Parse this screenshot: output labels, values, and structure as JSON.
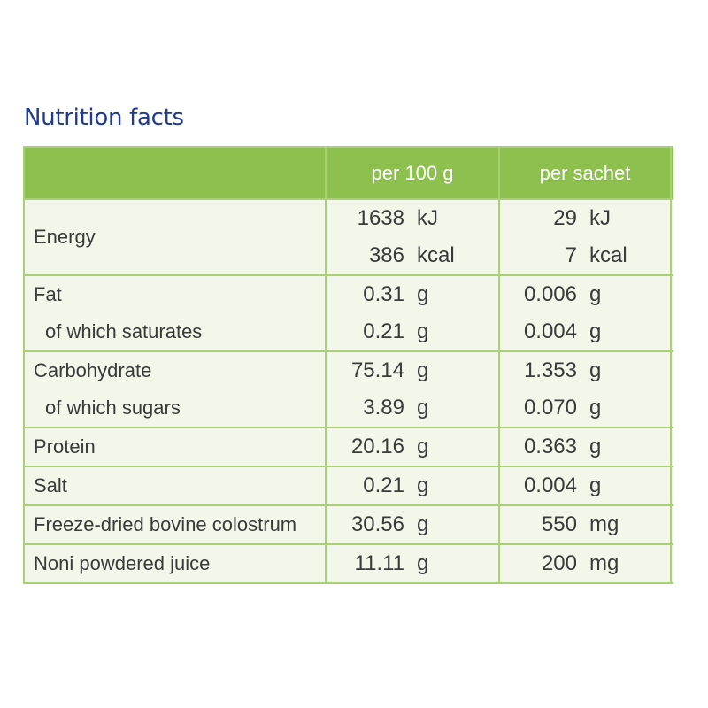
{
  "title": "Nutrition facts",
  "header": {
    "col1": "",
    "col2": "per 100 g",
    "col3": "per sachet"
  },
  "rows": [
    {
      "label": "Energy",
      "sub": [],
      "per100": [
        {
          "num": "1638",
          "unit": "kJ"
        },
        {
          "num": "386",
          "unit": "kcal"
        }
      ],
      "sachet": [
        {
          "num": "29",
          "unit": "kJ"
        },
        {
          "num": "7",
          "unit": "kcal"
        }
      ]
    },
    {
      "label": "Fat",
      "sub": [
        "of which saturates"
      ],
      "per100": [
        {
          "num": "0.31",
          "unit": "g"
        },
        {
          "num": "0.21",
          "unit": "g"
        }
      ],
      "sachet": [
        {
          "num": "0.006",
          "unit": "g"
        },
        {
          "num": "0.004",
          "unit": "g"
        }
      ]
    },
    {
      "label": "Carbohydrate",
      "sub": [
        "of which sugars"
      ],
      "per100": [
        {
          "num": "75.14",
          "unit": "g"
        },
        {
          "num": "3.89",
          "unit": "g"
        }
      ],
      "sachet": [
        {
          "num": "1.353",
          "unit": "g"
        },
        {
          "num": "0.070",
          "unit": "g"
        }
      ]
    },
    {
      "label": "Protein",
      "sub": [],
      "per100": [
        {
          "num": "20.16",
          "unit": "g"
        }
      ],
      "sachet": [
        {
          "num": "0.363",
          "unit": "g"
        }
      ]
    },
    {
      "label": "Salt",
      "sub": [],
      "per100": [
        {
          "num": "0.21",
          "unit": "g"
        }
      ],
      "sachet": [
        {
          "num": "0.004",
          "unit": "g"
        }
      ]
    },
    {
      "label": "Freeze-dried bovine colostrum",
      "sub": [],
      "per100": [
        {
          "num": "30.56",
          "unit": "g"
        }
      ],
      "sachet": [
        {
          "num": "550",
          "unit": "mg"
        }
      ]
    },
    {
      "label": "Noni powdered juice",
      "sub": [],
      "per100": [
        {
          "num": "11.11",
          "unit": "g"
        }
      ],
      "sachet": [
        {
          "num": "200",
          "unit": "mg"
        }
      ]
    }
  ],
  "colors": {
    "title": "#1f3a8f",
    "header_bg": "#8dc04f",
    "border": "#a9cf77",
    "row_bg": "#f2f7ea"
  }
}
